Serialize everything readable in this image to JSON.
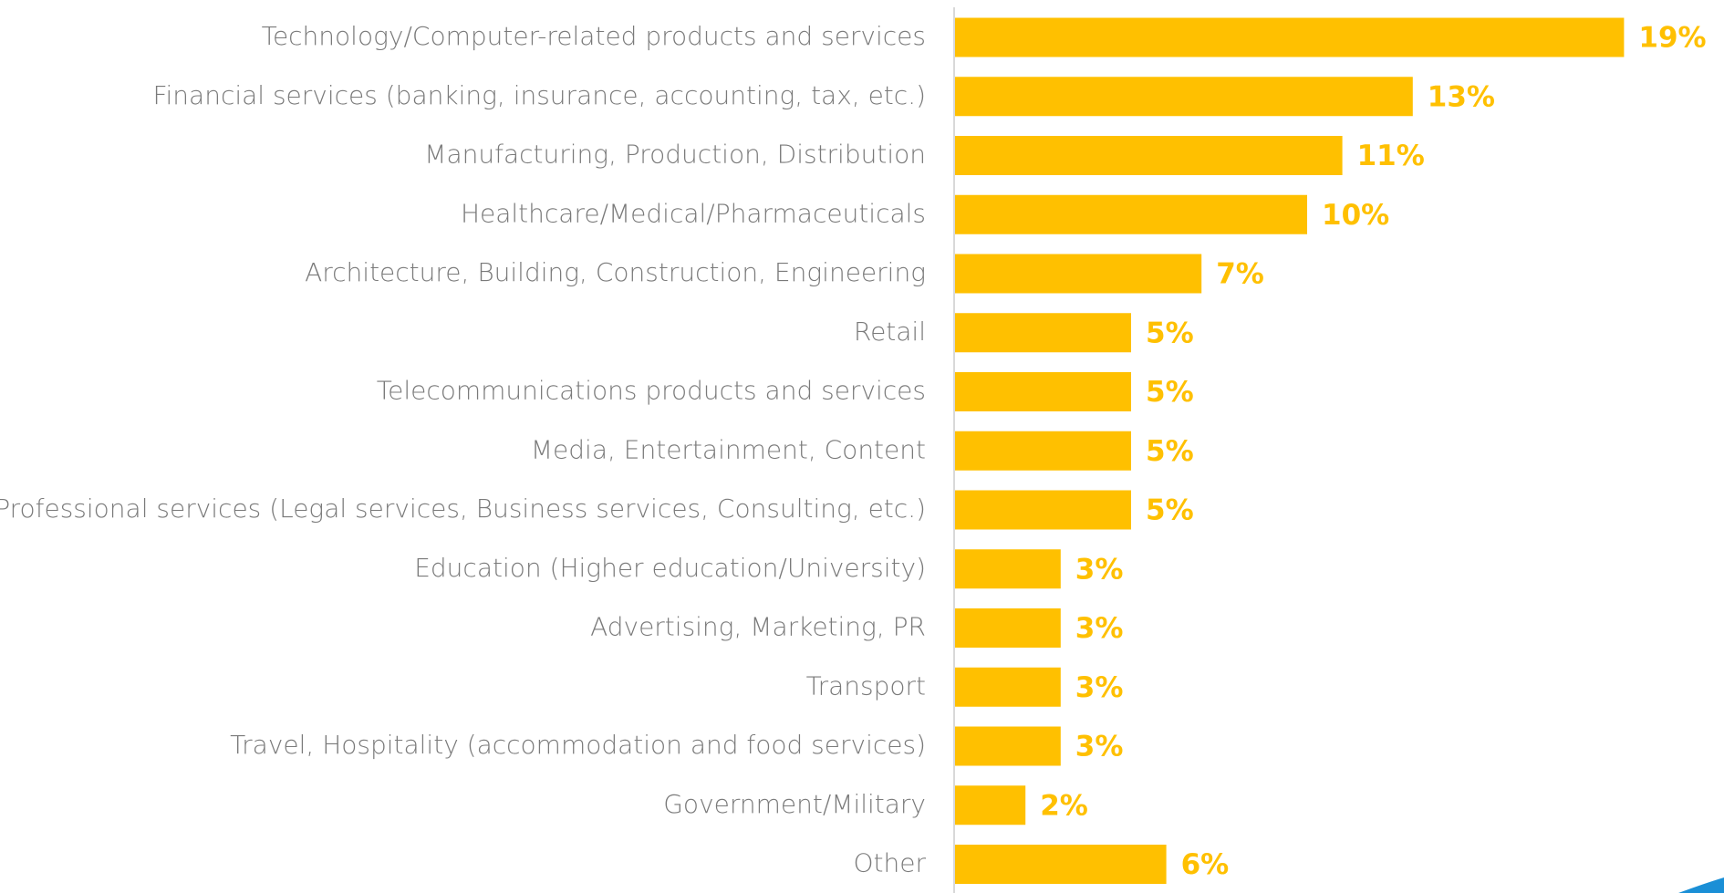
{
  "chart_data": {
    "type": "bar",
    "orientation": "horizontal",
    "color": "#ffc000",
    "categories": [
      "Technology/Computer-related products and services",
      "Financial services (banking, insurance, accounting, tax, etc.)",
      "Manufacturing, Production, Distribution",
      "Healthcare/Medical/Pharmaceuticals",
      "Architecture, Building, Construction, Engineering",
      "Retail",
      "Telecommunications products and services",
      "Media, Entertainment, Content",
      "Professional services (Legal services, Business services, Consulting, etc.)",
      "Education (Higher education/University)",
      "Advertising, Marketing, PR",
      "Transport",
      "Travel, Hospitality (accommodation and food services)",
      "Government/Military",
      "Other"
    ],
    "values": [
      19,
      13,
      11,
      10,
      7,
      5,
      5,
      5,
      5,
      3,
      3,
      3,
      3,
      2,
      6
    ],
    "value_labels": [
      "19%",
      "13%",
      "11%",
      "10%",
      "7%",
      "5%",
      "5%",
      "5%",
      "5%",
      "3%",
      "3%",
      "3%",
      "3%",
      "2%",
      "6%"
    ]
  }
}
